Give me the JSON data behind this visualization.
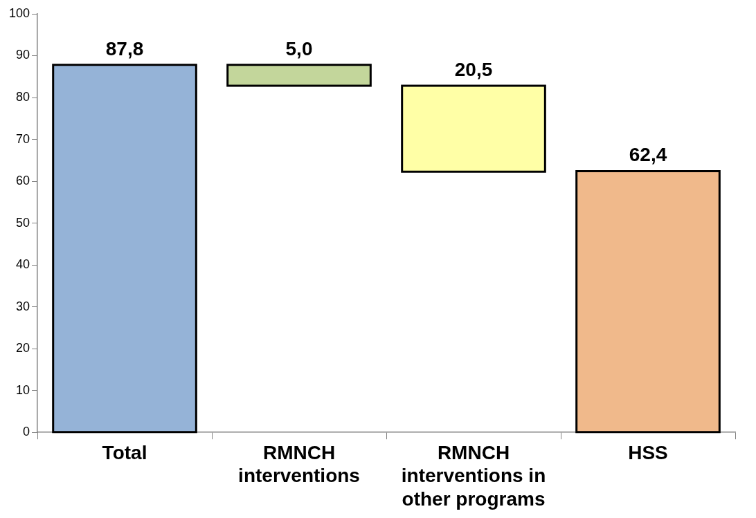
{
  "chart_data": {
    "type": "bar",
    "categories": [
      "Total",
      "RMNCH interventions",
      "RMNCH interventions in other programs",
      "HSS"
    ],
    "values": [
      87.8,
      5.0,
      20.5,
      62.4
    ],
    "base": [
      0,
      82.8,
      62.3,
      0
    ],
    "colors": [
      "#95b3d7",
      "#c3d69b",
      "#ffffa6",
      "#f0b98b"
    ],
    "value_labels": [
      "87,8",
      "5,0",
      "20,5",
      "62,4"
    ],
    "ylim": [
      0,
      100
    ],
    "yticks": [
      0,
      10,
      20,
      30,
      40,
      50,
      60,
      70,
      80,
      90,
      100
    ],
    "grid": false,
    "legend": false
  }
}
